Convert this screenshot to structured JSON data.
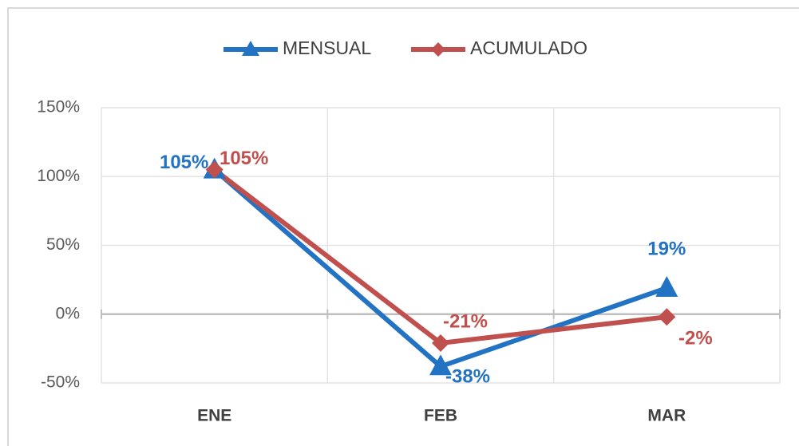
{
  "chart_data": {
    "type": "line",
    "categories": [
      "ENE",
      "FEB",
      "MAR"
    ],
    "series": [
      {
        "name": "MENSUAL",
        "color": "#2273c4",
        "marker": "triangle",
        "values": [
          105,
          -38,
          19
        ],
        "value_labels": [
          "105%",
          "-38%",
          "19%"
        ]
      },
      {
        "name": "ACUMULADO",
        "color": "#c0504d",
        "marker": "diamond",
        "values": [
          105,
          -21,
          -2
        ],
        "value_labels": [
          "105%",
          "-21%",
          "-2%"
        ]
      }
    ],
    "ylim": [
      -50,
      150
    ],
    "yticks": [
      {
        "value": -50,
        "label": "-50%"
      },
      {
        "value": 0,
        "label": "0%"
      },
      {
        "value": 50,
        "label": "50%"
      },
      {
        "value": 100,
        "label": "100%"
      },
      {
        "value": 150,
        "label": "150%"
      }
    ],
    "grid": true,
    "legend": "top"
  }
}
